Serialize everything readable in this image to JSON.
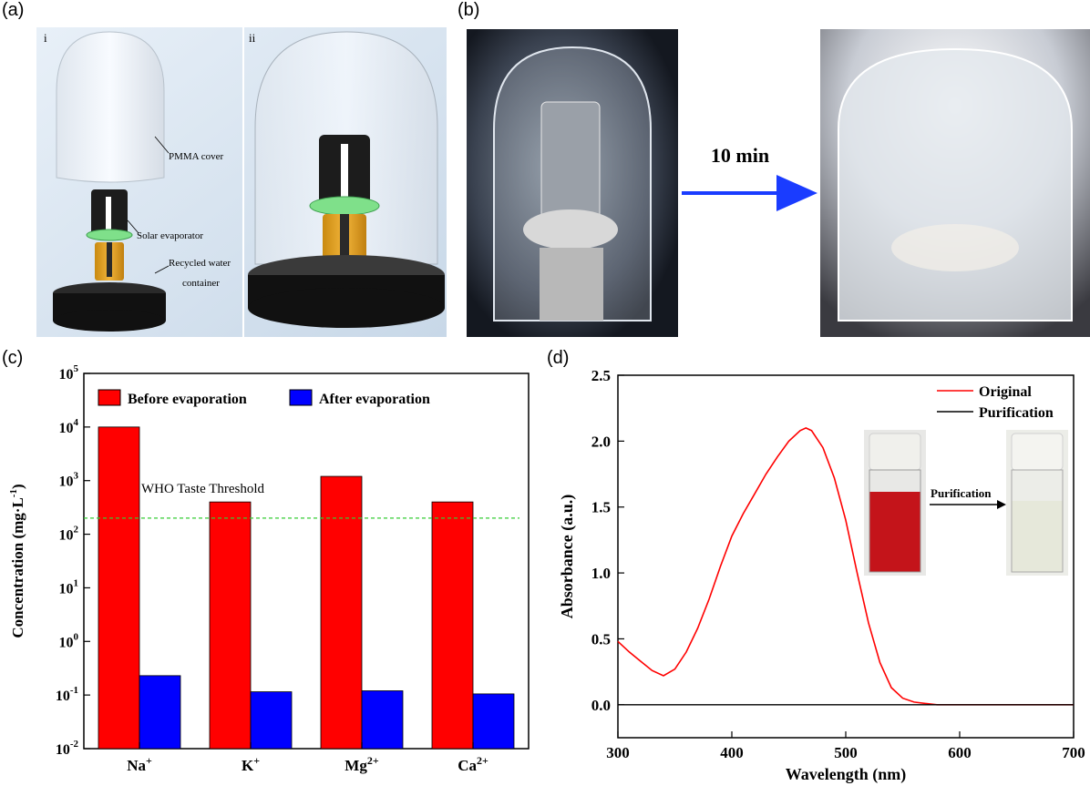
{
  "panels": {
    "a": {
      "label": "(a)",
      "sub_i": "i",
      "sub_ii": "ii",
      "annotations": {
        "pmma": "PMMA cover",
        "solar": "Solar evaporator",
        "recycled1": "Recycled water",
        "recycled2": "container"
      }
    },
    "b": {
      "label": "(b)",
      "arrow_text": "10 min"
    },
    "c": {
      "label": "(c)"
    },
    "d": {
      "label": "(d)",
      "inset_arrow_text": "Purification"
    }
  },
  "colors": {
    "before": "#ff0000",
    "after": "#0000ff",
    "threshold": "#33cc33",
    "original": "#ff0000",
    "purification": "#000000",
    "arrow": "#1a3cff"
  },
  "chart_data": [
    {
      "id": "c",
      "type": "bar",
      "scale": "log",
      "categories": [
        "Na+",
        "K+",
        "Mg2+",
        "Ca2+"
      ],
      "series": [
        {
          "name": "Before evaporation",
          "values": [
            10000,
            400,
            1200,
            400
          ]
        },
        {
          "name": "After evaporation",
          "values": [
            0.23,
            0.115,
            0.12,
            0.105
          ]
        }
      ],
      "ylabel": "Concentration (mg·L-1)",
      "ylim": [
        0.01,
        100000
      ],
      "threshold": {
        "label": "WHO Taste Threshold",
        "value": 200
      },
      "legend": "top"
    },
    {
      "id": "d",
      "type": "line",
      "xlabel": "Wavelength (nm)",
      "ylabel": "Absorbance (a.u.)",
      "xlim": [
        300,
        700
      ],
      "ylim": [
        -0.25,
        2.5
      ],
      "xticks": [
        300,
        400,
        500,
        600,
        700
      ],
      "yticks": [
        0.0,
        0.5,
        1.0,
        1.5,
        2.0,
        2.5
      ],
      "series": [
        {
          "name": "Original",
          "x": [
            300,
            310,
            320,
            330,
            340,
            350,
            360,
            370,
            380,
            390,
            400,
            410,
            420,
            430,
            440,
            450,
            460,
            465,
            470,
            480,
            490,
            500,
            510,
            520,
            530,
            540,
            550,
            560,
            570,
            580,
            590,
            600,
            620,
            650,
            680,
            700
          ],
          "y": [
            0.48,
            0.4,
            0.33,
            0.26,
            0.22,
            0.27,
            0.4,
            0.58,
            0.8,
            1.05,
            1.28,
            1.45,
            1.6,
            1.75,
            1.88,
            2.0,
            2.08,
            2.1,
            2.08,
            1.95,
            1.72,
            1.4,
            1.0,
            0.62,
            0.32,
            0.13,
            0.05,
            0.02,
            0.01,
            0.0,
            0.0,
            0.0,
            0.0,
            0.0,
            0.0,
            0.0
          ]
        },
        {
          "name": "Purification",
          "x": [
            300,
            700
          ],
          "y": [
            0.0,
            0.0
          ]
        }
      ],
      "legend": "top-right"
    }
  ]
}
